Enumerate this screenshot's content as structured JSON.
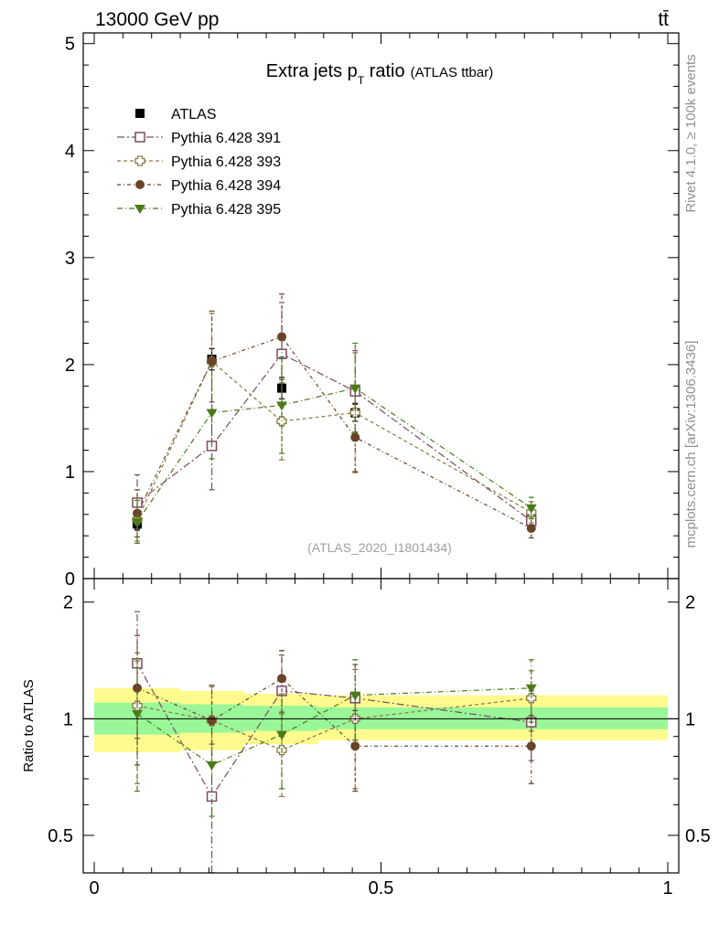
{
  "header": {
    "energy_label": "13000 GeV pp",
    "process_label": "tt̄",
    "side_label_top": "Rivet 4.1.0, ≥ 100k events",
    "side_label_bottom": "mcplots.cern.ch [arXiv:1306.3436]"
  },
  "chart_data": [
    {
      "type": "scatter",
      "title_main": "Extra jets p",
      "title_sub": "T",
      "title_tail": " ratio",
      "title_paren": "(ATLAS ttbar)",
      "watermark": "(ATLAS_2020_I1801434)",
      "xlim": [
        0,
        1
      ],
      "ylim": [
        0,
        5.1
      ],
      "yticks": [
        0,
        1,
        2,
        3,
        4,
        5
      ],
      "ytick_labels": [
        "0",
        "1",
        "2",
        "3",
        "4",
        "5"
      ],
      "x": [
        0.075,
        0.205,
        0.327,
        0.455,
        0.762
      ],
      "series": [
        {
          "name": "ATLAS",
          "color": "#000000",
          "marker": "square-filled",
          "values": [
            0.51,
            2.05,
            1.78,
            1.55,
            0.55
          ],
          "err": [
            0.05,
            0.1,
            0.1,
            0.08,
            0.05
          ]
        },
        {
          "name": "Pythia 6.428 391",
          "color": "#7b4d61",
          "marker": "square-open",
          "dash": "8,3,2,3",
          "values": [
            0.71,
            1.24,
            2.1,
            1.75,
            0.54
          ],
          "err": [
            0.26,
            0.41,
            0.48,
            0.38,
            0.1
          ]
        },
        {
          "name": "Pythia 6.428 393",
          "color": "#8a7a44",
          "marker": "cross-open",
          "dash": "4,3",
          "values": [
            0.55,
            2.03,
            1.47,
            1.55,
            0.62
          ],
          "err": [
            0.2,
            0.45,
            0.36,
            0.56,
            0.1
          ]
        },
        {
          "name": "Pythia 6.428 394",
          "color": "#6a4428",
          "marker": "circle-filled",
          "dash": "4,3,1,3",
          "values": [
            0.61,
            2.03,
            2.26,
            1.32,
            0.47
          ],
          "err": [
            0.22,
            0.47,
            0.4,
            0.32,
            0.09
          ]
        },
        {
          "name": "Pythia 6.428 395",
          "color": "#4c7a1a",
          "marker": "triangle-down",
          "dash": "6,3,1,3",
          "values": [
            0.53,
            1.55,
            1.62,
            1.78,
            0.66
          ],
          "err": [
            0.2,
            0.43,
            0.45,
            0.42,
            0.1
          ]
        }
      ]
    },
    {
      "type": "scatter",
      "ylabel": "Ratio to ATLAS",
      "xlim": [
        0,
        1
      ],
      "ylim": [
        0.4,
        2.3
      ],
      "yscale": "log",
      "xticks": [
        0,
        0.5,
        1
      ],
      "xtick_labels": [
        "0",
        "0.5",
        "1"
      ],
      "yticks": [
        0.5,
        1,
        2
      ],
      "ytick_labels": [
        "0.5",
        "1",
        "2"
      ],
      "bands": [
        {
          "x": [
            0.0,
            0.15,
            0.15,
            0.26,
            0.26,
            0.39,
            0.39,
            1.0
          ],
          "inner_lo": [
            0.91,
            0.91,
            0.92,
            0.92,
            0.93,
            0.93,
            0.94,
            0.94
          ],
          "inner_hi": [
            1.1,
            1.1,
            1.09,
            1.09,
            1.08,
            1.08,
            1.07,
            1.07
          ],
          "outer_lo": [
            0.82,
            0.82,
            0.83,
            0.83,
            0.86,
            0.86,
            0.88,
            0.88
          ],
          "outer_hi": [
            1.2,
            1.2,
            1.18,
            1.18,
            1.16,
            1.16,
            1.15,
            1.15
          ],
          "inner_color": "#99f799",
          "outer_color": "#fdfb8e"
        }
      ],
      "x": [
        0.075,
        0.205,
        0.327,
        0.455,
        0.762
      ],
      "series": [
        {
          "name": "Pythia 6.428 391",
          "color": "#7b4d61",
          "marker": "square-open",
          "dash": "8,3,2,3",
          "values": [
            1.39,
            0.63,
            1.18,
            1.13,
            0.98
          ],
          "err": [
            0.5,
            0.23,
            0.28,
            0.25,
            0.2
          ]
        },
        {
          "name": "Pythia 6.428 393",
          "color": "#8a7a44",
          "marker": "cross-open",
          "dash": "4,3",
          "values": [
            1.08,
            0.99,
            0.83,
            1.0,
            1.13
          ],
          "err": [
            0.4,
            0.22,
            0.2,
            0.34,
            0.2
          ]
        },
        {
          "name": "Pythia 6.428 394",
          "color": "#6a4428",
          "marker": "circle-filled",
          "dash": "4,3,1,3",
          "values": [
            1.2,
            0.99,
            1.27,
            0.85,
            0.85
          ],
          "err": [
            0.44,
            0.23,
            0.23,
            0.2,
            0.17
          ]
        },
        {
          "name": "Pythia 6.428 395",
          "color": "#4c7a1a",
          "marker": "triangle-down",
          "dash": "6,3,1,3",
          "values": [
            1.03,
            0.76,
            0.91,
            1.15,
            1.2
          ],
          "err": [
            0.38,
            0.2,
            0.25,
            0.27,
            0.22
          ]
        }
      ]
    }
  ]
}
